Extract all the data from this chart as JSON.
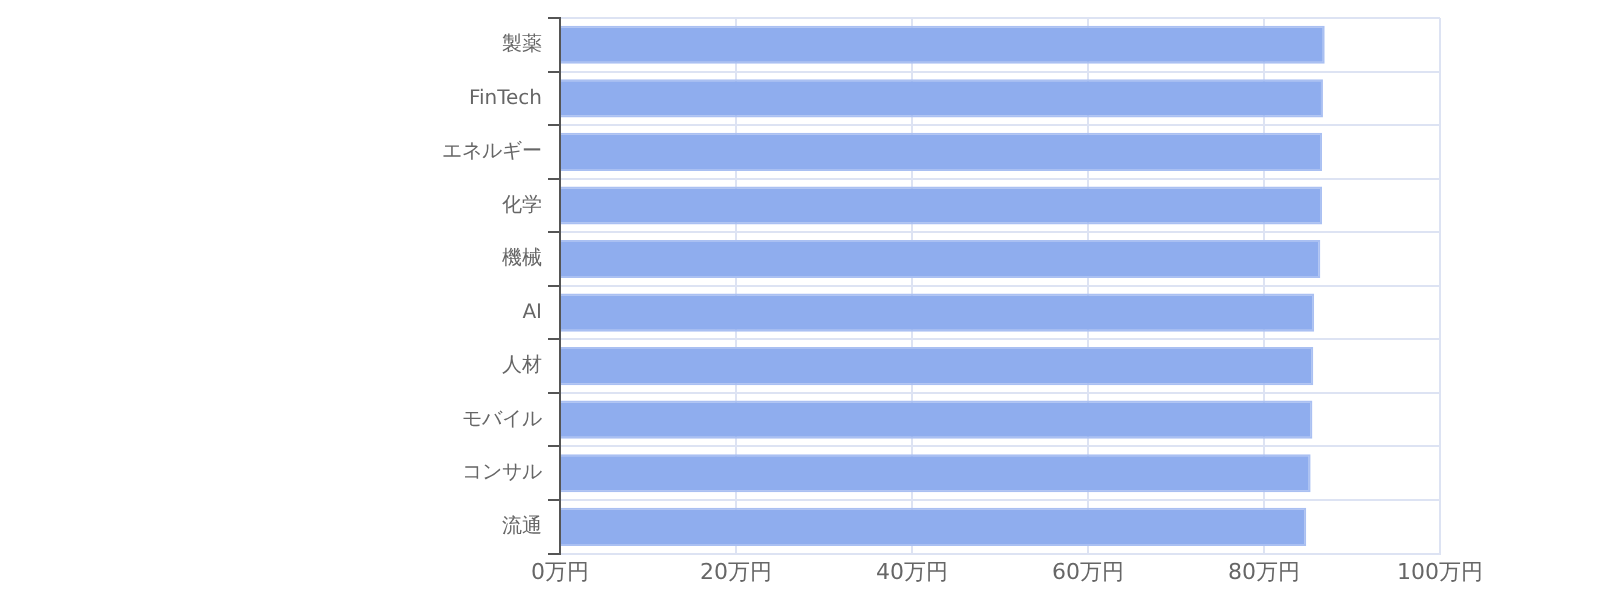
{
  "chart_data": {
    "type": "bar",
    "orientation": "horizontal",
    "categories": [
      "製薬",
      "FinTech",
      "エネルギー",
      "化学",
      "機械",
      "AI",
      "人材",
      "モバイル",
      "コンサル",
      "流通"
    ],
    "values": [
      86.9,
      86.7,
      86.6,
      86.6,
      86.4,
      85.7,
      85.6,
      85.5,
      85.3,
      84.8
    ],
    "color": "#8fadee",
    "xlim": [
      0,
      100
    ],
    "xticks": [
      {
        "value": 0,
        "label": "0万円"
      },
      {
        "value": 20,
        "label": "20万円"
      },
      {
        "value": 40,
        "label": "40万円"
      },
      {
        "value": 60,
        "label": "60万円"
      },
      {
        "value": 80,
        "label": "80万円"
      },
      {
        "value": 100,
        "label": "100万円"
      }
    ],
    "grid": true,
    "legend": false
  }
}
